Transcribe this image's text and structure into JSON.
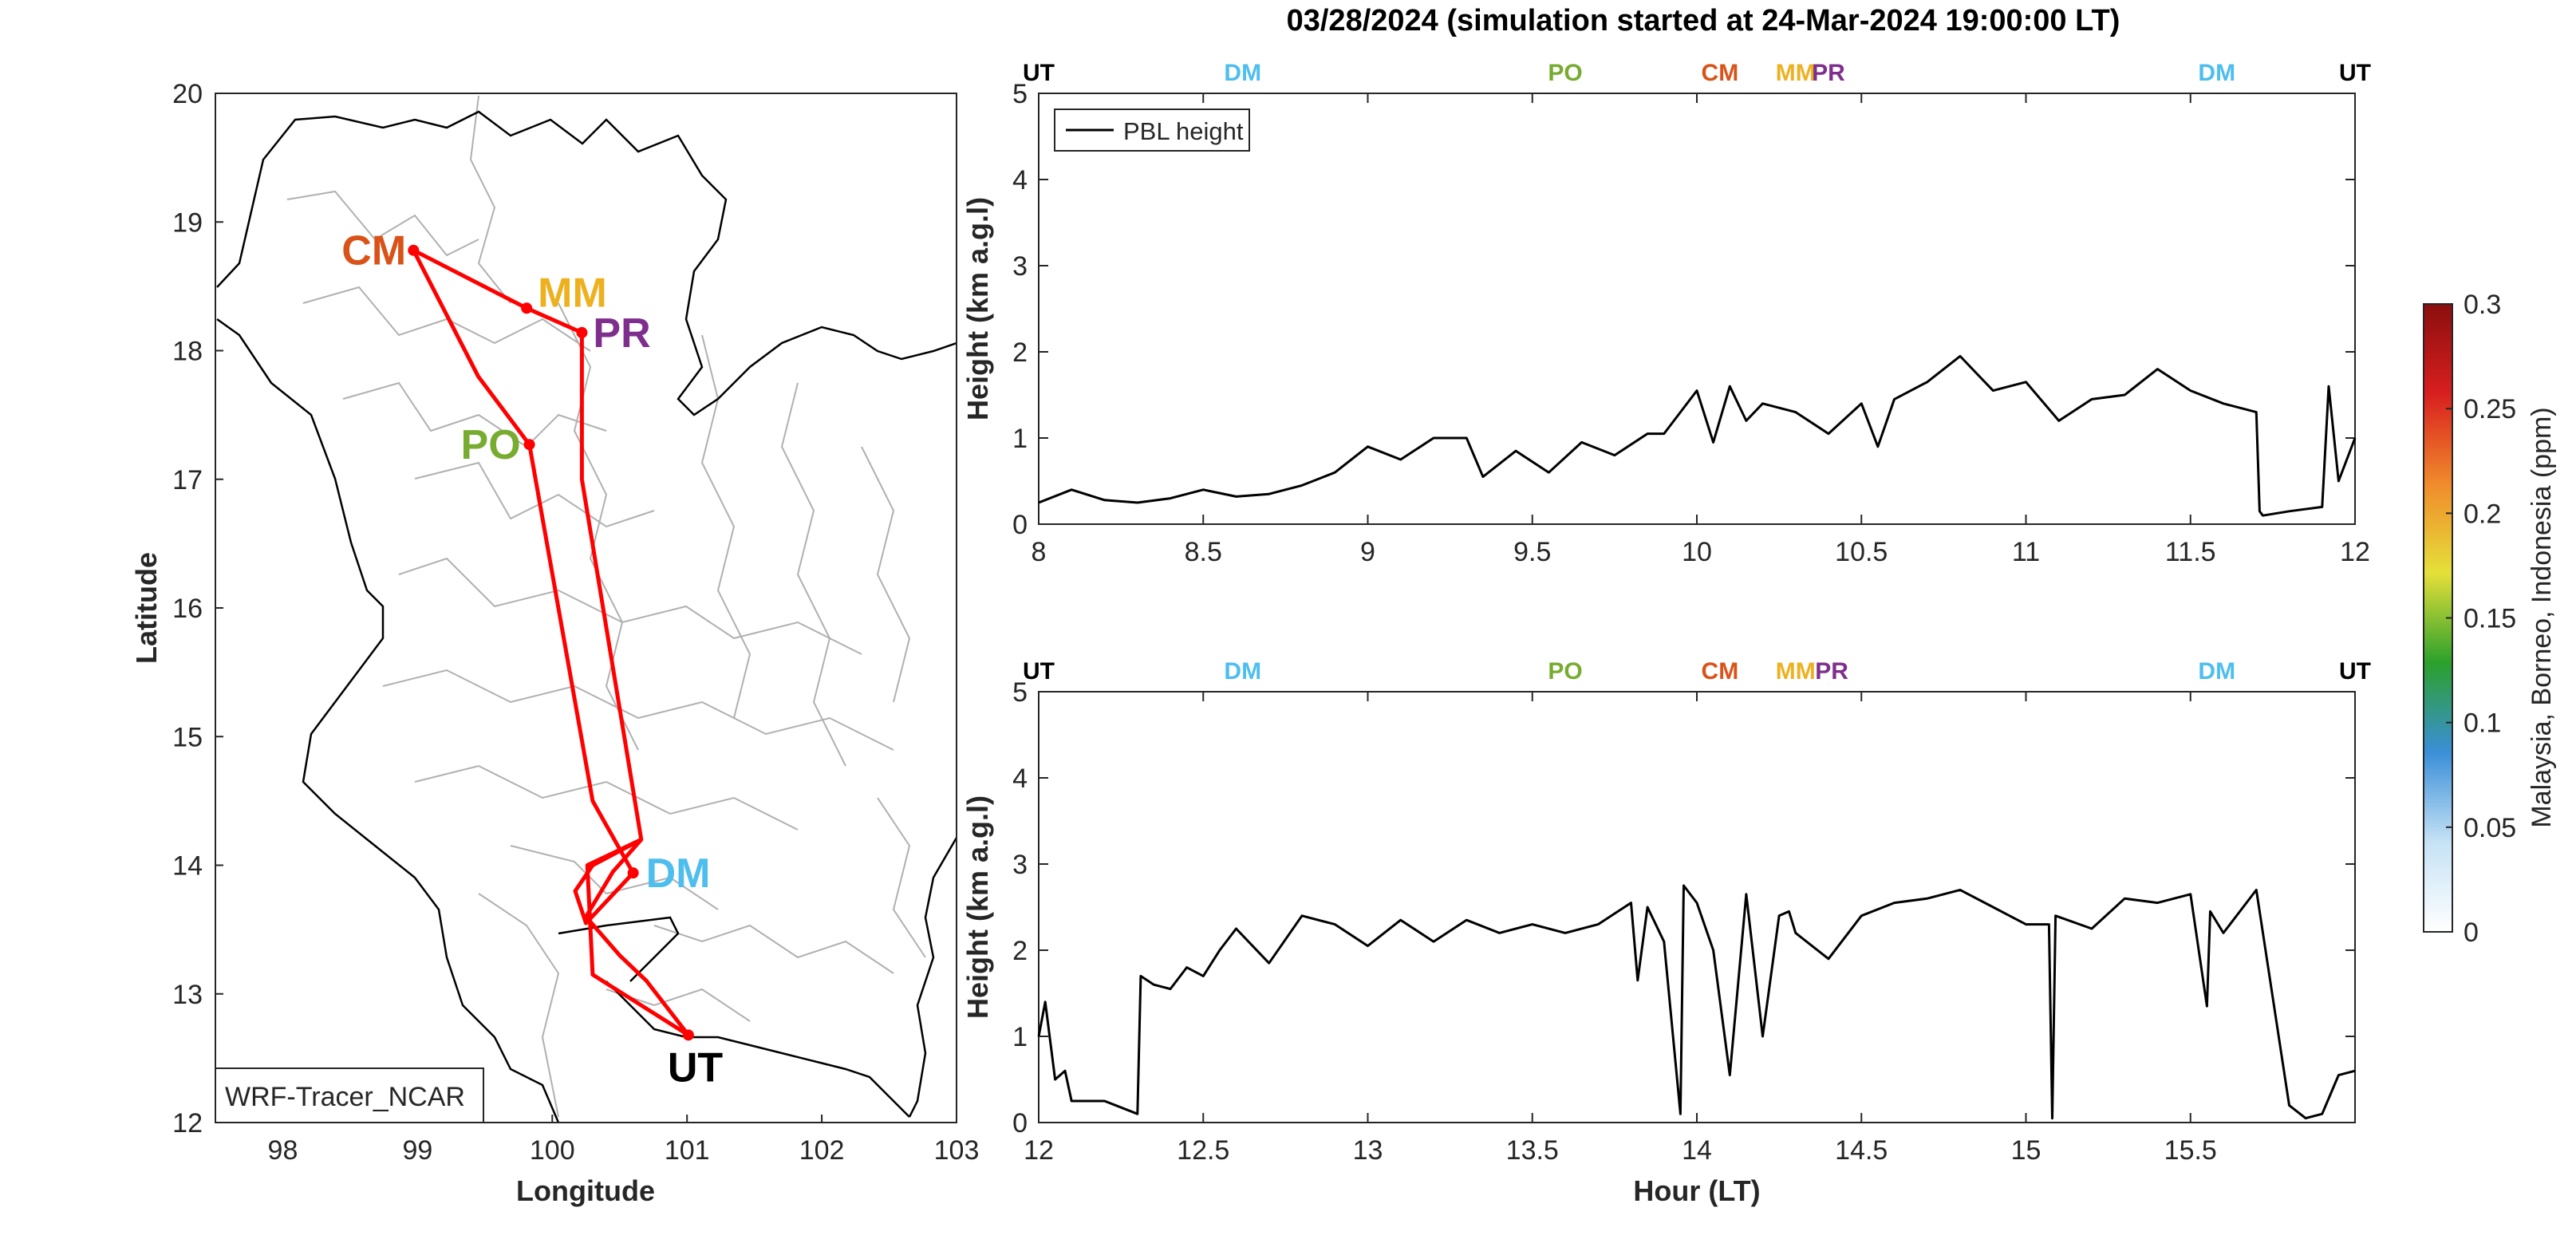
{
  "chart_title": "03/28/2024 (simulation started at 24-Mar-2024 19:00:00 LT)",
  "colors": {
    "UT": "#000000",
    "DM": "#4DBEEE",
    "PO": "#77AC30",
    "CM": "#D95319",
    "MM": "#EDB120",
    "PR": "#7E2F8E",
    "route": "#FF0000",
    "line": "#000000",
    "border": "#000000",
    "province": "#B0B0B0"
  },
  "chart_data": [
    {
      "type": "map",
      "xlabel": "Longitude",
      "ylabel": "Latitude",
      "xlim": [
        97.5,
        103
      ],
      "ylim": [
        12,
        20
      ],
      "xticks": [
        "98",
        "99",
        "100",
        "101",
        "102",
        "103"
      ],
      "yticks": [
        "12",
        "13",
        "14",
        "15",
        "16",
        "17",
        "18",
        "19",
        "20"
      ],
      "legend": "WRF-Tracer_NCAR",
      "sites": [
        {
          "label": "CM",
          "lon": 98.97,
          "lat": 18.78
        },
        {
          "label": "MM",
          "lon": 99.81,
          "lat": 18.33
        },
        {
          "label": "PR",
          "lon": 100.22,
          "lat": 18.14
        },
        {
          "label": "PO",
          "lon": 99.83,
          "lat": 17.27
        },
        {
          "label": "DM",
          "lon": 100.6,
          "lat": 13.94
        },
        {
          "label": "UT",
          "lon": 101.01,
          "lat": 12.68
        }
      ],
      "route": [
        [
          101.01,
          12.68
        ],
        [
          100.3,
          13.15
        ],
        [
          100.26,
          14.0
        ],
        [
          100.66,
          14.2
        ],
        [
          100.22,
          17.0
        ],
        [
          100.22,
          18.14
        ],
        [
          99.81,
          18.33
        ],
        [
          98.97,
          18.78
        ],
        [
          99.45,
          17.8
        ],
        [
          99.83,
          17.27
        ],
        [
          100.3,
          14.5
        ],
        [
          100.6,
          13.94
        ],
        [
          100.25,
          13.55
        ],
        [
          100.17,
          13.8
        ],
        [
          100.3,
          14.0
        ],
        [
          100.66,
          14.2
        ],
        [
          100.45,
          13.95
        ],
        [
          100.25,
          13.6
        ],
        [
          100.5,
          13.3
        ],
        [
          100.7,
          13.1
        ],
        [
          101.01,
          12.68
        ]
      ]
    },
    {
      "type": "line",
      "ylabel": "Height (km a.g.l)",
      "xlabel": "",
      "xlim": [
        8,
        12
      ],
      "ylim": [
        0,
        5
      ],
      "xticks": [
        "8",
        "8.5",
        "9",
        "9.5",
        "10",
        "10.5",
        "11",
        "11.5",
        "12"
      ],
      "yticks": [
        "0",
        "1",
        "2",
        "3",
        "4",
        "5"
      ],
      "legend": "top-left",
      "series": [
        {
          "name": "PBL height",
          "x": [
            8.0,
            8.1,
            8.2,
            8.3,
            8.4,
            8.5,
            8.6,
            8.7,
            8.8,
            8.9,
            9.0,
            9.1,
            9.2,
            9.3,
            9.35,
            9.45,
            9.55,
            9.65,
            9.75,
            9.85,
            9.9,
            9.95,
            10.0,
            10.05,
            10.1,
            10.15,
            10.2,
            10.3,
            10.4,
            10.5,
            10.55,
            10.6,
            10.7,
            10.8,
            10.85,
            10.9,
            11.0,
            11.1,
            11.2,
            11.3,
            11.4,
            11.5,
            11.6,
            11.7,
            11.71,
            11.72,
            11.8,
            11.9,
            11.92,
            11.95,
            12.0
          ],
          "values": [
            0.25,
            0.4,
            0.28,
            0.25,
            0.3,
            0.4,
            0.32,
            0.35,
            0.45,
            0.6,
            0.9,
            0.75,
            1.0,
            1.0,
            0.55,
            0.85,
            0.6,
            0.95,
            0.8,
            1.05,
            1.05,
            1.3,
            1.55,
            0.95,
            1.6,
            1.2,
            1.4,
            1.3,
            1.05,
            1.4,
            0.9,
            1.45,
            1.65,
            1.95,
            1.75,
            1.55,
            1.65,
            1.2,
            1.45,
            1.5,
            1.8,
            1.55,
            1.4,
            1.3,
            0.15,
            0.1,
            0.15,
            0.2,
            1.6,
            0.5,
            1.0
          ]
        }
      ],
      "markers": [
        {
          "label": "UT",
          "x": 8.0
        },
        {
          "label": "DM",
          "x": 8.62
        },
        {
          "label": "PO",
          "x": 9.6
        },
        {
          "label": "CM",
          "x": 10.07
        },
        {
          "label": "MM",
          "x": 10.3
        },
        {
          "label": "PR",
          "x": 10.4
        },
        {
          "label": "DM",
          "x": 11.58
        },
        {
          "label": "UT",
          "x": 12.0
        }
      ]
    },
    {
      "type": "line",
      "ylabel": "Height (km a.g.l)",
      "xlabel": "Hour (LT)",
      "xlim": [
        12,
        16
      ],
      "ylim": [
        0,
        5
      ],
      "xticks": [
        "12",
        "12.5",
        "13",
        "13.5",
        "14",
        "14.5",
        "15",
        "15.5"
      ],
      "yticks": [
        "0",
        "1",
        "2",
        "3",
        "4",
        "5"
      ],
      "series": [
        {
          "name": "PBL height",
          "x": [
            12.0,
            12.02,
            12.05,
            12.08,
            12.1,
            12.2,
            12.3,
            12.31,
            12.35,
            12.4,
            12.45,
            12.5,
            12.55,
            12.6,
            12.7,
            12.8,
            12.9,
            13.0,
            13.1,
            13.2,
            13.3,
            13.4,
            13.5,
            13.6,
            13.7,
            13.8,
            13.82,
            13.85,
            13.9,
            13.95,
            13.96,
            14.0,
            14.05,
            14.1,
            14.15,
            14.2,
            14.25,
            14.28,
            14.3,
            14.4,
            14.5,
            14.6,
            14.7,
            14.8,
            14.9,
            15.0,
            15.07,
            15.08,
            15.09,
            15.2,
            15.3,
            15.4,
            15.5,
            15.55,
            15.56,
            15.6,
            15.7,
            15.8,
            15.85,
            15.9,
            15.95,
            16.0
          ],
          "values": [
            1.0,
            1.4,
            0.5,
            0.6,
            0.25,
            0.25,
            0.1,
            1.7,
            1.6,
            1.55,
            1.8,
            1.7,
            2.0,
            2.25,
            1.85,
            2.4,
            2.3,
            2.05,
            2.35,
            2.1,
            2.35,
            2.2,
            2.3,
            2.2,
            2.3,
            2.55,
            1.65,
            2.5,
            2.1,
            0.1,
            2.75,
            2.55,
            2.0,
            0.55,
            2.65,
            1.0,
            2.4,
            2.45,
            2.2,
            1.9,
            2.4,
            2.55,
            2.6,
            2.7,
            2.5,
            2.3,
            2.3,
            0.05,
            2.4,
            2.25,
            2.6,
            2.55,
            2.65,
            1.35,
            2.45,
            2.2,
            2.7,
            0.2,
            0.05,
            0.1,
            0.55,
            0.6
          ]
        }
      ],
      "markers": [
        {
          "label": "UT",
          "x": 12.0
        },
        {
          "label": "DM",
          "x": 12.62
        },
        {
          "label": "PO",
          "x": 13.6
        },
        {
          "label": "CM",
          "x": 14.07
        },
        {
          "label": "MM",
          "x": 14.3
        },
        {
          "label": "PR",
          "x": 14.41
        },
        {
          "label": "DM",
          "x": 15.58
        },
        {
          "label": "UT",
          "x": 16.0
        }
      ]
    },
    {
      "type": "colorbar",
      "label": "Malaysia, Borneo, Indonesia (ppm)",
      "range": [
        0,
        0.3
      ],
      "ticks": [
        "0",
        "0.05",
        "0.1",
        "0.15",
        "0.2",
        "0.25",
        "0.3"
      ],
      "stops": [
        "#FFFFFF",
        "#C6E2F5",
        "#3A8FD8",
        "#2CA02C",
        "#E5E03A",
        "#F08A2C",
        "#D81F1F",
        "#8B0E0E"
      ]
    }
  ]
}
